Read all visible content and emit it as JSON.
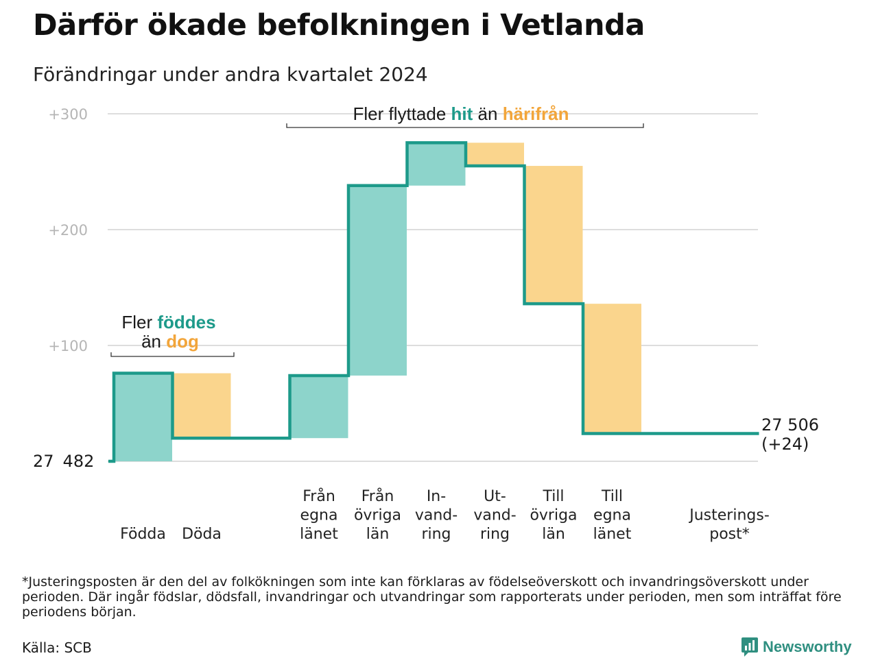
{
  "title": "Därför ökade befolkningen i Vetlanda",
  "subtitle": "Förändringar under andra kvartalet 2024",
  "chart_data": {
    "type": "waterfall",
    "start": {
      "value": 27482,
      "label_parts": [
        "27",
        "482"
      ]
    },
    "end": {
      "value": 27506,
      "label_line1": "27 506",
      "label_line2": "(+24)"
    },
    "yaxis": {
      "ticks": [
        100,
        200,
        300
      ],
      "tick_labels": [
        "+100",
        "+200",
        "+300"
      ],
      "ylim": [
        0,
        300
      ],
      "grid": true
    },
    "steps": [
      {
        "key": "fodda",
        "label_lines": [
          "Födda"
        ],
        "delta": 76
      },
      {
        "key": "doda",
        "label_lines": [
          "Döda"
        ],
        "delta": -56
      },
      {
        "key": "gap",
        "label_lines": [],
        "delta": 0
      },
      {
        "key": "fran-egna-lanet",
        "label_lines": [
          "Från",
          "egna",
          "länet"
        ],
        "delta": 54
      },
      {
        "key": "fran-ovriga-lan",
        "label_lines": [
          "Från",
          "övriga",
          "län"
        ],
        "delta": 164
      },
      {
        "key": "invandring",
        "label_lines": [
          "In-",
          "vand-",
          "ring"
        ],
        "delta": 37
      },
      {
        "key": "utvandring",
        "label_lines": [
          "Ut-",
          "vand-",
          "ring"
        ],
        "delta": -20
      },
      {
        "key": "till-ovriga-lan",
        "label_lines": [
          "Till",
          "övriga",
          "län"
        ],
        "delta": -119
      },
      {
        "key": "till-egna-lanet",
        "label_lines": [
          "Till",
          "egna",
          "länet"
        ],
        "delta": -112
      },
      {
        "key": "gap2",
        "label_lines": [],
        "delta": 0
      },
      {
        "key": "justeringspost",
        "label_lines": [
          "Justerings-",
          "post*"
        ],
        "delta": 0
      }
    ],
    "colors": {
      "increase": "#8dd4cb",
      "decrease": "#fad58d",
      "line": "#1d9a8a",
      "grid": "#dddddd"
    },
    "annotations": {
      "births": {
        "line1_parts": [
          "Fler ",
          "föddes"
        ],
        "line2_parts": [
          "än ",
          "dog"
        ]
      },
      "migration": {
        "parts": [
          "Fler flyttade ",
          "hit",
          " än ",
          "härifrån"
        ]
      }
    }
  },
  "footnote": "*Justeringsposten är den del av folkökningen som inte kan förklaras av födelseöverskott och invandringsöverskott under perioden. Där ingår födslar, dödsfall, invandringar och utvandringar som rapporterats under perioden, men som inträffat före periodens början.",
  "source": "Källa: SCB",
  "brand": {
    "name": "Newsworthy",
    "icon": "newsworthy-logo-icon"
  }
}
